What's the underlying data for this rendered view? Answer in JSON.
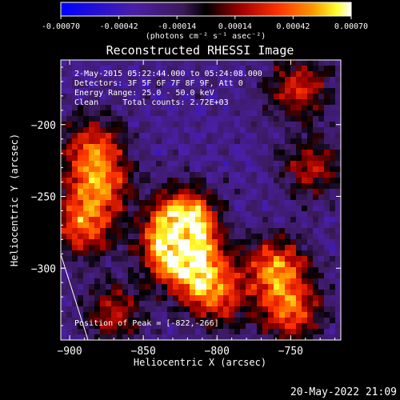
{
  "chart_data": {
    "type": "heatmap",
    "title": "Reconstructed RHESSI Image",
    "xlabel": "Heliocentric X (arcsec)",
    "ylabel": "Heliocentric Y (arcsec)",
    "xlim": [
      -906,
      -716
    ],
    "ylim": [
      -350,
      -155
    ],
    "x_ticks": [
      -900,
      -850,
      -800,
      -750
    ],
    "y_ticks": [
      -200,
      -250,
      -300
    ],
    "colorbar": {
      "min": -0.0007,
      "max": 0.0007,
      "ticks": [
        "-0.00070",
        "-0.00042",
        "-0.00014",
        "0.00014",
        "0.00042",
        "0.00070"
      ],
      "units": "(photons cm⁻² s⁻¹ asec⁻²)",
      "colormap": [
        "#0000ff",
        "#3a1fa0",
        "#4a1a7a",
        "#000000",
        "#8b0000",
        "#ff3300",
        "#ff9900",
        "#ffff00",
        "#ffffff"
      ]
    },
    "annotations": [
      "2-May-2015 05:22:44.000 to 05:24:08.000",
      "Detectors: 3F 5F 6F 7F 8F 9F, Att 0",
      "Energy Range: 25.0 - 50.0 keV",
      "Clean     Total counts: 2.72E+03"
    ],
    "peak_label": "Position of Peak = [-822,-266]",
    "peak": [
      -822,
      -266
    ],
    "sources": [
      {
        "x": -822,
        "y": -266,
        "intensity": 1.0
      },
      {
        "x": -830,
        "y": -285,
        "intensity": 0.9
      },
      {
        "x": -815,
        "y": -300,
        "intensity": 0.75
      },
      {
        "x": -800,
        "y": -320,
        "intensity": 0.6
      },
      {
        "x": -880,
        "y": -240,
        "intensity": 0.7
      },
      {
        "x": -890,
        "y": -270,
        "intensity": 0.75
      },
      {
        "x": -885,
        "y": -215,
        "intensity": 0.6
      },
      {
        "x": -760,
        "y": -300,
        "intensity": 0.8
      },
      {
        "x": -750,
        "y": -330,
        "intensity": 0.7
      },
      {
        "x": -745,
        "y": -175,
        "intensity": 0.6
      },
      {
        "x": -735,
        "y": -230,
        "intensity": 0.5
      },
      {
        "x": -870,
        "y": -330,
        "intensity": 0.5
      }
    ]
  },
  "timestamp": "20-May-2022 21:09"
}
